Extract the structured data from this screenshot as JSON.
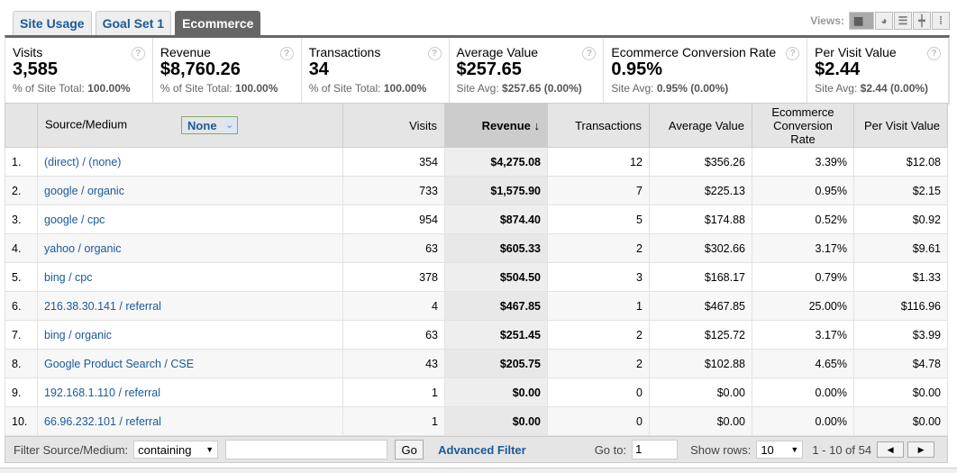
{
  "tabs": [
    "Site Usage",
    "Goal Set 1",
    "Ecommerce"
  ],
  "views": {
    "label": "Views:"
  },
  "scorecards": [
    {
      "title": "Visits",
      "value": "3,585",
      "sub_label": "% of Site Total:",
      "sub_value": "100.00%"
    },
    {
      "title": "Revenue",
      "value": "$8,760.26",
      "sub_label": "% of Site Total:",
      "sub_value": "100.00%"
    },
    {
      "title": "Transactions",
      "value": "34",
      "sub_label": "% of Site Total:",
      "sub_value": "100.00%"
    },
    {
      "title": "Average Value",
      "value": "$257.65",
      "sub_label": "Site Avg:",
      "sub_value": "$257.65 (0.00%)"
    },
    {
      "title": "Ecommerce Conversion Rate",
      "value": "0.95%",
      "sub_label": "Site Avg:",
      "sub_value": "0.95% (0.00%)"
    },
    {
      "title": "Per Visit Value",
      "value": "$2.44",
      "sub_label": "Site Avg:",
      "sub_value": "$2.44 (0.00%)"
    }
  ],
  "table": {
    "headers": {
      "source": "Source/Medium",
      "segment": "None",
      "visits": "Visits",
      "revenue": "Revenue",
      "transactions": "Transactions",
      "avg": "Average Value",
      "ecr": "Ecommerce Conversion Rate",
      "pvv": "Per Visit Value"
    },
    "rows": [
      [
        "1.",
        "(direct) / (none)",
        "354",
        "$4,275.08",
        "12",
        "$356.26",
        "3.39%",
        "$12.08"
      ],
      [
        "2.",
        "google / organic",
        "733",
        "$1,575.90",
        "7",
        "$225.13",
        "0.95%",
        "$2.15"
      ],
      [
        "3.",
        "google / cpc",
        "954",
        "$874.40",
        "5",
        "$174.88",
        "0.52%",
        "$0.92"
      ],
      [
        "4.",
        "yahoo / organic",
        "63",
        "$605.33",
        "2",
        "$302.66",
        "3.17%",
        "$9.61"
      ],
      [
        "5.",
        "bing / cpc",
        "378",
        "$504.50",
        "3",
        "$168.17",
        "0.79%",
        "$1.33"
      ],
      [
        "6.",
        "216.38.30.141 / referral",
        "4",
        "$467.85",
        "1",
        "$467.85",
        "25.00%",
        "$116.96"
      ],
      [
        "7.",
        "bing / organic",
        "63",
        "$251.45",
        "2",
        "$125.72",
        "3.17%",
        "$3.99"
      ],
      [
        "8.",
        "Google  Product  Search / CSE",
        "43",
        "$205.75",
        "2",
        "$102.88",
        "4.65%",
        "$4.78"
      ],
      [
        "9.",
        "192.168.1.110 / referral",
        "1",
        "$0.00",
        "0",
        "$0.00",
        "0.00%",
        "$0.00"
      ],
      [
        "10.",
        "66.96.232.101 / referral",
        "1",
        "$0.00",
        "0",
        "$0.00",
        "0.00%",
        "$0.00"
      ]
    ]
  },
  "footer": {
    "filter_label": "Filter Source/Medium:",
    "filter_mode": "containing",
    "filter_value": "",
    "go": "Go",
    "advanced": "Advanced Filter",
    "goto_label": "Go to:",
    "goto_value": "1",
    "rows_label": "Show rows:",
    "rows_value": "10",
    "range": "1 - 10 of 54"
  }
}
